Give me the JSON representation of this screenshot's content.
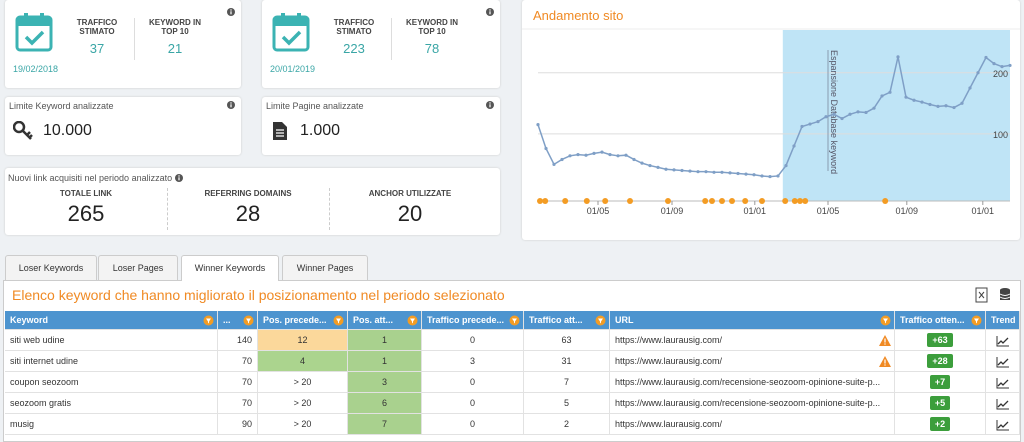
{
  "summary_cards": [
    {
      "date": "19/02/2018",
      "metrics": [
        {
          "label": "TRAFFICO STIMATO",
          "value": 37
        },
        {
          "label": "KEYWORD IN TOP 10",
          "value": 21
        }
      ]
    },
    {
      "date": "20/01/2019",
      "metrics": [
        {
          "label": "TRAFFICO STIMATO",
          "value": 223
        },
        {
          "label": "KEYWORD IN TOP 10",
          "value": 78
        }
      ]
    }
  ],
  "limits": [
    {
      "label": "Limite Keyword analizzate",
      "value": "10.000",
      "icon": "key"
    },
    {
      "label": "Limite Pagine analizzate",
      "value": "1.000",
      "icon": "page"
    }
  ],
  "links": {
    "title": "Nuovi link acquisiti nel periodo analizzato",
    "metrics": [
      {
        "label": "TOTALE LINK",
        "value": 265
      },
      {
        "label": "REFERRING DOMAINS",
        "value": 28
      },
      {
        "label": "ANCHOR UTILIZZATE",
        "value": 20
      }
    ]
  },
  "chart": {
    "type": "line",
    "title": "Andamento sito",
    "annotation": "Espansione Database keyword",
    "color": "#7f9fc6",
    "highlight_color": "#bfe4f6",
    "event_color": "#f39c24",
    "grid": true,
    "values": [
      115,
      76,
      50,
      58,
      64,
      66,
      65,
      68,
      70,
      66,
      64,
      65,
      58,
      52,
      48,
      45,
      42,
      41,
      40,
      39,
      38,
      38,
      37,
      37,
      36,
      35,
      34,
      33,
      31,
      30,
      31,
      48,
      80,
      112,
      116,
      120,
      128,
      132,
      125,
      132,
      136,
      135,
      142,
      162,
      168,
      226,
      160,
      155,
      152,
      148,
      145,
      146,
      143,
      150,
      175,
      200,
      225,
      215,
      210,
      212
    ],
    "xlim": [
      0,
      59
    ],
    "xticks": [
      {
        "value": 7.5,
        "label": "01/05"
      },
      {
        "value": 16.75,
        "label": "01/09"
      },
      {
        "value": 27.1,
        "label": "01/01"
      },
      {
        "value": 36.25,
        "label": "01/05"
      },
      {
        "value": 46.1,
        "label": "01/09"
      },
      {
        "value": 55.6,
        "label": "01/01"
      }
    ],
    "ylim": [
      -10,
      270
    ],
    "yticks": [
      100,
      200
    ],
    "highlight": [
      30.6,
      59
    ],
    "annotation_x": 36.25,
    "events": [
      0.25,
      0.9,
      3.4,
      6.1,
      8.4,
      11.5,
      16.25,
      20.9,
      21.75,
      23,
      24.25,
      25.9,
      28,
      30.9,
      32.1,
      32.75,
      33.4,
      43.4
    ]
  },
  "tabs": [
    "Loser Keywords",
    "Loser Pages",
    "Winner Keywords",
    "Winner Pages"
  ],
  "active_tab": 2,
  "table": {
    "title": "Elenco keyword che hanno migliorato il posizionamento nel periodo selezionato",
    "columns": [
      "Keyword",
      "...",
      "Pos. precede...",
      "Pos. att...",
      "Traffico precede...",
      "Traffico att...",
      "URL",
      "Traffico otten...",
      "Trend"
    ],
    "rows": [
      {
        "keyword": "siti web udine",
        "volume": 140,
        "prev_pos": "12",
        "prev_pos_color": "#fbd89b",
        "pos": 1,
        "prev_traffic": 0,
        "traffic": 63,
        "url": "https://www.laurausig.com/",
        "warning": true,
        "gain": "+63"
      },
      {
        "keyword": "siti internet udine",
        "volume": 70,
        "prev_pos": "4",
        "prev_pos_color": "#abd48e",
        "pos": 1,
        "prev_traffic": 3,
        "traffic": 31,
        "url": "https://www.laurausig.com/",
        "warning": true,
        "gain": "+28"
      },
      {
        "keyword": "coupon seozoom",
        "volume": 70,
        "prev_pos": "> 20",
        "prev_pos_color": null,
        "pos": 3,
        "prev_traffic": 0,
        "traffic": 7,
        "url": "https://www.laurausig.com/recensione-seozoom-opinione-suite-p...",
        "warning": false,
        "gain": "+7"
      },
      {
        "keyword": "seozoom gratis",
        "volume": 70,
        "prev_pos": "> 20",
        "prev_pos_color": null,
        "pos": 6,
        "prev_traffic": 0,
        "traffic": 5,
        "url": "https://www.laurausig.com/recensione-seozoom-opinione-suite-p...",
        "warning": false,
        "gain": "+5"
      },
      {
        "keyword": "musig",
        "volume": 90,
        "prev_pos": "> 20",
        "prev_pos_color": null,
        "pos": 7,
        "prev_traffic": 0,
        "traffic": 2,
        "url": "https://www.laurausig.com/",
        "warning": false,
        "gain": "+2"
      }
    ]
  }
}
